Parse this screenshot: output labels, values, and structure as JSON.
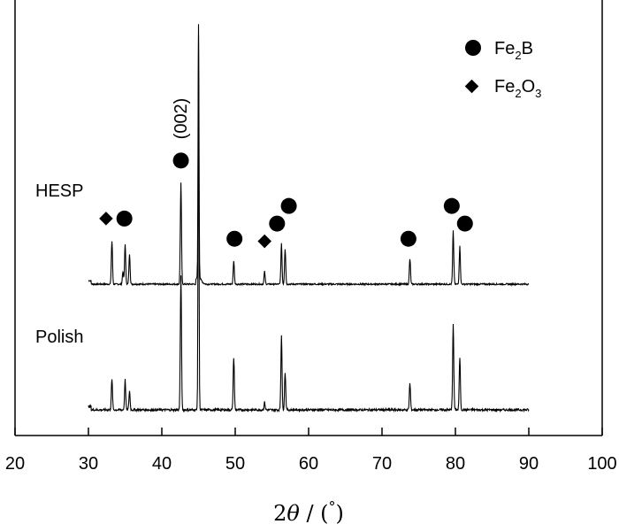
{
  "chart_data": {
    "type": "line",
    "xlabel_parts": [
      "2",
      "θ",
      " / (",
      "°",
      ")"
    ],
    "xlim": [
      20,
      100
    ],
    "x_ticks": [
      "20",
      "30",
      "40",
      "50",
      "60",
      "70",
      "80",
      "90",
      "100"
    ],
    "x_tick_values": [
      20,
      30,
      40,
      50,
      60,
      70,
      80,
      90,
      100
    ],
    "y_scale": "arbitrary (stacked patterns)",
    "series": [
      {
        "name": "HESP",
        "x_range": [
          30,
          90
        ],
        "peaks": [
          {
            "x": 33.2,
            "h": 0.17
          },
          {
            "x": 34.7,
            "h": 0.05
          },
          {
            "x": 35.0,
            "h": 0.16
          },
          {
            "x": 35.6,
            "h": 0.12
          },
          {
            "x": 42.6,
            "h": 0.4
          },
          {
            "x": 45.0,
            "h": 1.0
          },
          {
            "x": 49.8,
            "h": 0.09
          },
          {
            "x": 54.0,
            "h": 0.05
          },
          {
            "x": 56.3,
            "h": 0.16
          },
          {
            "x": 56.8,
            "h": 0.14
          },
          {
            "x": 73.8,
            "h": 0.1
          },
          {
            "x": 79.7,
            "h": 0.21
          },
          {
            "x": 80.6,
            "h": 0.15
          }
        ]
      },
      {
        "name": "Polish",
        "x_range": [
          30,
          90
        ],
        "peaks": [
          {
            "x": 33.2,
            "h": 0.08
          },
          {
            "x": 35.0,
            "h": 0.08
          },
          {
            "x": 35.6,
            "h": 0.05
          },
          {
            "x": 42.6,
            "h": 0.36
          },
          {
            "x": 45.0,
            "h": 1.0
          },
          {
            "x": 49.8,
            "h": 0.14
          },
          {
            "x": 54.0,
            "h": 0.02
          },
          {
            "x": 56.3,
            "h": 0.2
          },
          {
            "x": 56.8,
            "h": 0.1
          },
          {
            "x": 73.8,
            "h": 0.07
          },
          {
            "x": 79.7,
            "h": 0.23
          },
          {
            "x": 80.6,
            "h": 0.14
          }
        ]
      }
    ],
    "markers": [
      {
        "type": "diamond",
        "x": 32.4,
        "level": 0.26
      },
      {
        "type": "circle",
        "x": 34.9,
        "level": 0.26
      },
      {
        "type": "circle",
        "x": 42.6,
        "level": 0.49
      },
      {
        "type": "circle",
        "x": 49.9,
        "level": 0.18
      },
      {
        "type": "diamond",
        "x": 54.0,
        "level": 0.17
      },
      {
        "type": "circle",
        "x": 55.7,
        "level": 0.24
      },
      {
        "type": "circle",
        "x": 57.3,
        "level": 0.31
      },
      {
        "type": "circle",
        "x": 73.6,
        "level": 0.18
      },
      {
        "type": "circle",
        "x": 79.5,
        "level": 0.31
      },
      {
        "type": "circle",
        "x": 81.3,
        "level": 0.24
      }
    ],
    "annotations": [
      {
        "text": "(002)",
        "x": 42.6
      }
    ],
    "legend": {
      "placement": "top-right",
      "entries": [
        {
          "marker": "circle",
          "parts": [
            "Fe",
            "2",
            "B"
          ]
        },
        {
          "marker": "diamond",
          "parts": [
            "Fe",
            "2",
            "O",
            "3"
          ]
        }
      ]
    }
  }
}
